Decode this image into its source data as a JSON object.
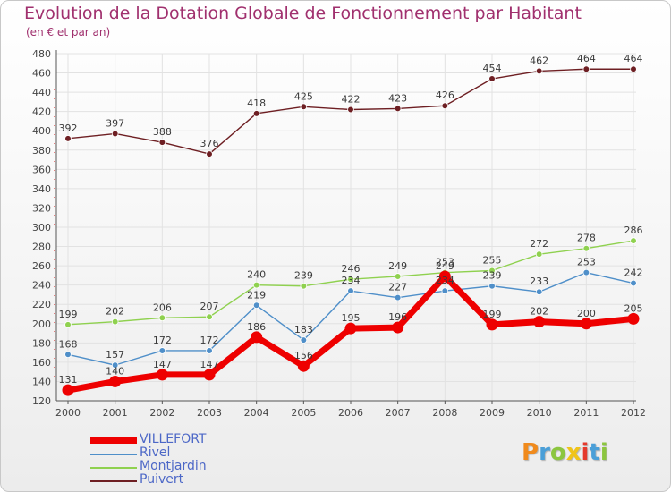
{
  "chart_data": {
    "type": "line",
    "title": "Evolution de la Dotation Globale de Fonctionnement par Habitant",
    "subtitle": "(en € et par an)",
    "xlabel": "",
    "ylabel": "",
    "categories": [
      "2000",
      "2001",
      "2002",
      "2003",
      "2004",
      "2005",
      "2006",
      "2007",
      "2008",
      "2009",
      "2010",
      "2011",
      "2012"
    ],
    "ylim": [
      120,
      480
    ],
    "yticks": [
      120,
      140,
      160,
      180,
      200,
      220,
      240,
      260,
      280,
      300,
      320,
      340,
      360,
      380,
      400,
      420,
      440,
      460,
      480
    ],
    "grid": true,
    "legend_position": "bottom-left",
    "series": [
      {
        "name": "VILLEFORT",
        "color": "#ee0000",
        "values": [
          131,
          140,
          147,
          147,
          186,
          156,
          195,
          196,
          249,
          199,
          202,
          200,
          205
        ],
        "labels": [
          "131",
          "140",
          "147",
          "147",
          "186",
          "156",
          "195",
          "196",
          "249",
          "199",
          "202",
          "200",
          "205"
        ]
      },
      {
        "name": "Rivel",
        "color": "#4f8fc9",
        "values": [
          168,
          157,
          172,
          172,
          219,
          183,
          234,
          227,
          234,
          239,
          233,
          253,
          242
        ],
        "labels": [
          "168",
          "157",
          "172",
          "172",
          "219",
          "183",
          "234",
          "227",
          "234",
          "239",
          "233",
          "253",
          "242"
        ]
      },
      {
        "name": "Montjardin",
        "color": "#8fd14f",
        "values": [
          199,
          202,
          206,
          207,
          240,
          239,
          246,
          249,
          253,
          255,
          272,
          278,
          286
        ],
        "labels": [
          "199",
          "202",
          "206",
          "207",
          "240",
          "239",
          "246",
          "249",
          "253",
          "255",
          "272",
          "278",
          "286"
        ]
      },
      {
        "name": "Puivert",
        "color": "#6e1f23",
        "values": [
          392,
          397,
          388,
          376,
          418,
          425,
          422,
          423,
          426,
          454,
          462,
          464,
          464
        ],
        "labels": [
          "392",
          "397",
          "388",
          "376",
          "418",
          "425",
          "422",
          "423",
          "426",
          "454",
          "462",
          "464",
          "464"
        ]
      }
    ]
  },
  "logo": {
    "letters": [
      "P",
      "r",
      "o",
      "x",
      "i",
      "t",
      "i"
    ],
    "colors": [
      "#f08a1c",
      "#4a9fd8",
      "#8cc63f",
      "#f0c419",
      "#e5392b",
      "#4a9fd8",
      "#8cc63f"
    ]
  }
}
